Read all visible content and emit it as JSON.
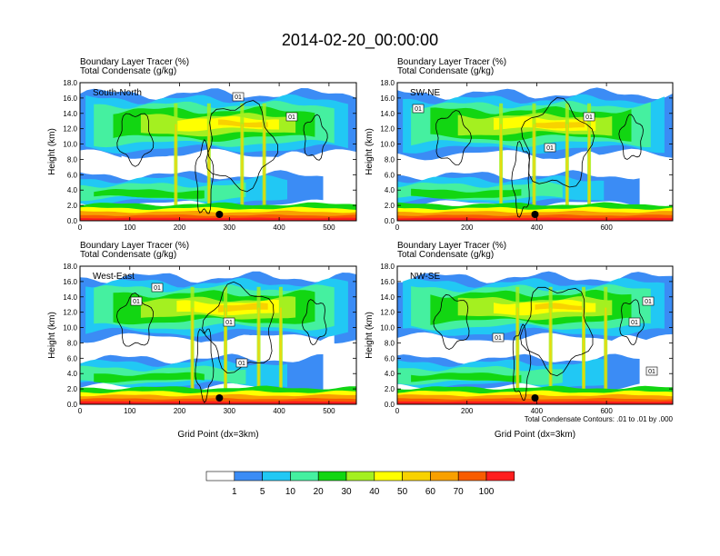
{
  "title": "2014-02-20_00:00:00",
  "contour_note": "Total Condensate Contours: .01 to .01 by .000",
  "colorbar": {
    "colors": [
      "#ffffff",
      "#3b8cf5",
      "#21c8f4",
      "#45f0a0",
      "#12d612",
      "#a4f020",
      "#ffff00",
      "#f8d200",
      "#f8a000",
      "#f85c00",
      "#ff1e1e"
    ],
    "labels": [
      "1",
      "5",
      "10",
      "20",
      "30",
      "40",
      "50",
      "60",
      "70",
      "100"
    ]
  },
  "chart_data": [
    {
      "type": "heatmap",
      "panel": "South-North",
      "header_line1": "Boundary Layer Tracer    (%)",
      "header_line2": "Total Condensate    (g/kg)",
      "ylabel": "Height (km)",
      "xlabel": "",
      "xlim": [
        0,
        555
      ],
      "ylim": [
        0,
        18
      ],
      "xticks": [
        "0",
        "100",
        "200",
        "300",
        "400",
        "500"
      ],
      "yticks": [
        "0.0",
        "2.0",
        "4.0",
        "6.0",
        "8.0",
        "10.0",
        "12.0",
        "14.0",
        "16.0",
        "18.0"
      ],
      "marker_x": 280,
      "contour_labels": [
        "01",
        "01"
      ]
    },
    {
      "type": "heatmap",
      "panel": "SW-NE",
      "header_line1": "Boundary Layer Tracer    (%)",
      "header_line2": "Total Condensate    (g/kg)",
      "ylabel": "Height (km)",
      "xlabel": "",
      "xlim": [
        0,
        790
      ],
      "ylim": [
        0,
        18
      ],
      "xticks": [
        "0",
        "200",
        "400",
        "600"
      ],
      "yticks": [
        "0.0",
        "2.0",
        "4.0",
        "6.0",
        "8.0",
        "10.0",
        "12.0",
        "14.0",
        "16.0",
        "18.0"
      ],
      "marker_x": 395,
      "contour_labels": [
        "01",
        "01",
        "01"
      ]
    },
    {
      "type": "heatmap",
      "panel": "West-East",
      "header_line1": "Boundary Layer Tracer    (%)",
      "header_line2": "Total Condensate    (g/kg)",
      "ylabel": "Height (km)",
      "xlabel": "Grid Point (dx=3km)",
      "xlim": [
        0,
        555
      ],
      "ylim": [
        0,
        18
      ],
      "xticks": [
        "0",
        "100",
        "200",
        "300",
        "400",
        "500"
      ],
      "yticks": [
        "0.0",
        "2.0",
        "4.0",
        "6.0",
        "8.0",
        "10.0",
        "12.0",
        "14.0",
        "16.0",
        "18.0"
      ],
      "marker_x": 280,
      "contour_labels": [
        "01",
        "01",
        "01",
        "01"
      ]
    },
    {
      "type": "heatmap",
      "panel": "NW-SE",
      "header_line1": "Boundary Layer Tracer    (%)",
      "header_line2": "Total Condensate    (g/kg)",
      "ylabel": "Height (km)",
      "xlabel": "Grid Point (dx=3km)",
      "xlim": [
        0,
        790
      ],
      "ylim": [
        0,
        18
      ],
      "xticks": [
        "0",
        "200",
        "400",
        "600"
      ],
      "yticks": [
        "0.0",
        "2.0",
        "4.0",
        "6.0",
        "8.0",
        "10.0",
        "12.0",
        "14.0",
        "16.0",
        "18.0"
      ],
      "marker_x": 395,
      "contour_labels": [
        "01",
        "01",
        "01",
        "01"
      ]
    }
  ]
}
